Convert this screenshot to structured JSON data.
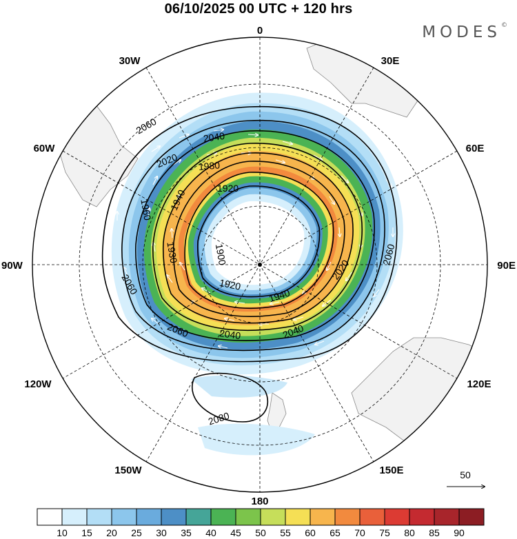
{
  "title": "06/10/2025  00 UTC  + 120 hrs",
  "brand": "MODES",
  "brand_mark": "©",
  "map": {
    "projection": "south-polar-stereographic",
    "longitude_labels": {
      "top": "0",
      "bottom": "180",
      "left": "90W",
      "right": "90E",
      "upper_left_1": "30W",
      "upper_left_2": "60W",
      "upper_right_1": "30E",
      "upper_right_2": "60E",
      "lower_left_1": "120W",
      "lower_left_2": "150W",
      "lower_right_1": "120E",
      "lower_right_2": "150E"
    },
    "geopotential_contour_labels": {
      "c2060_a": "2060",
      "c2040_a": "2040",
      "c2020_a": "2020",
      "c1980": "1980",
      "c1920_a": "1920",
      "c1960": "1960",
      "c1940_a": "1940",
      "c1900": "1900",
      "c1930": "1930",
      "c1920_b": "1920",
      "c1940_b": "1940",
      "c2020_b": "2020",
      "c2060_b": "2060",
      "c2060_c": "2060",
      "c2060_d": "2060",
      "c2040_b": "2040",
      "c2040_c": "2040",
      "c2080": "2080"
    },
    "reference_vector": "50"
  },
  "colorbar": {
    "ticks": [
      "10",
      "15",
      "20",
      "25",
      "30",
      "35",
      "40",
      "45",
      "50",
      "55",
      "60",
      "65",
      "70",
      "75",
      "80",
      "85",
      "90"
    ],
    "colors": [
      "#ffffff",
      "#d6effc",
      "#b3def6",
      "#8cc6ec",
      "#6aabdd",
      "#4d8fc6",
      "#45a598",
      "#4bb354",
      "#7cc44b",
      "#c6de5a",
      "#f5df55",
      "#f7b54d",
      "#f28a3e",
      "#e9603a",
      "#dc3b33",
      "#c42a30",
      "#a8252b",
      "#8c1d23"
    ]
  },
  "colors": {
    "land": "#f2f2f2",
    "coast": "#888888",
    "grid": "#000000"
  }
}
